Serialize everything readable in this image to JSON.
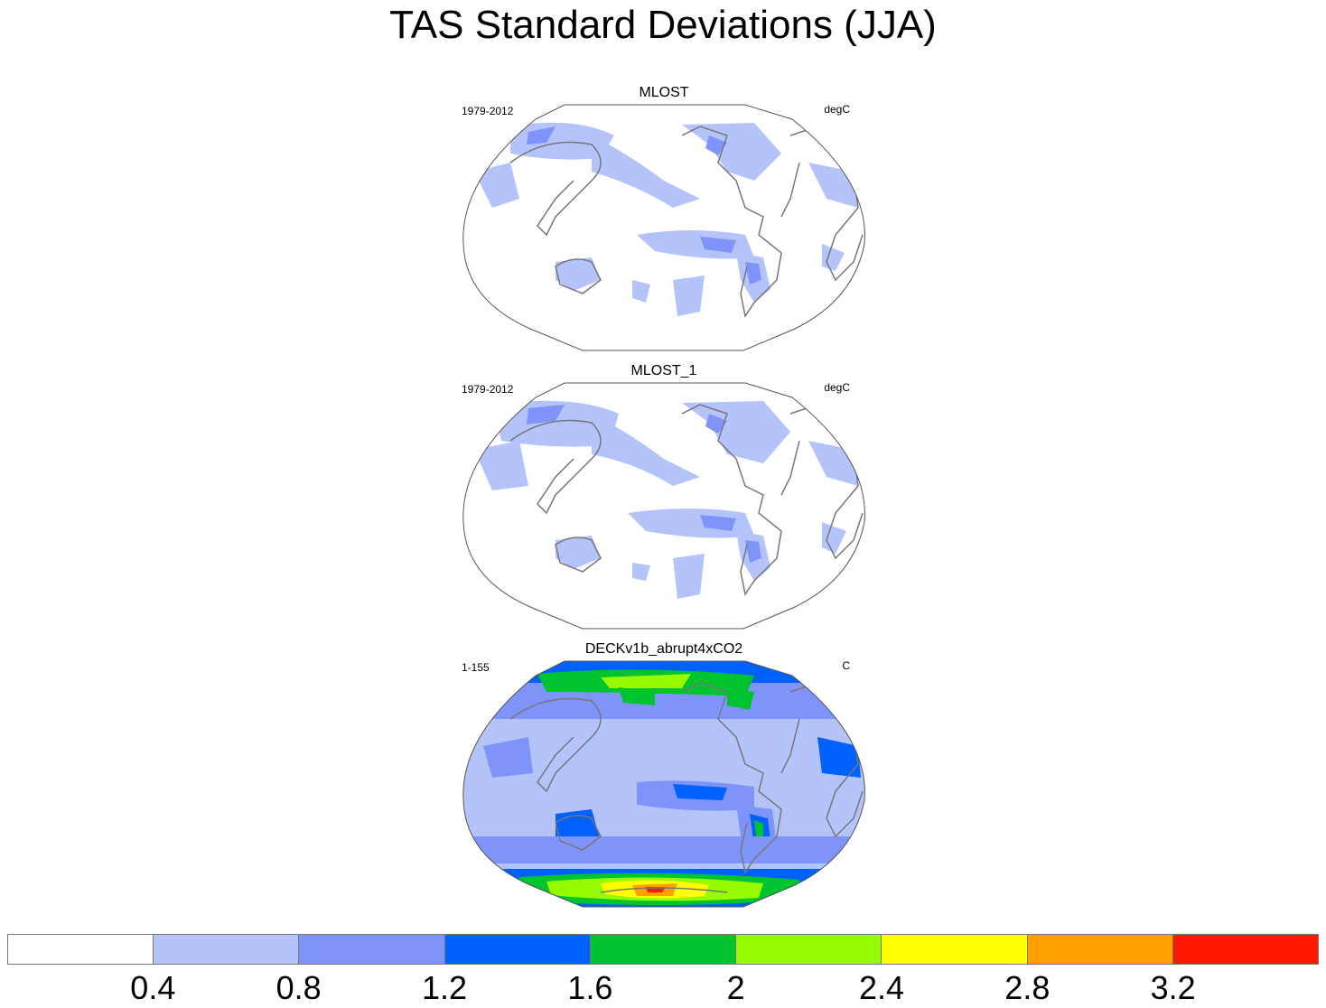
{
  "title": "TAS Standard Deviations (JJA)",
  "panels": [
    {
      "name": "MLOST",
      "period": "1979-2012",
      "units": "degC"
    },
    {
      "name": "MLOST_1",
      "period": "1979-2012",
      "units": "degC"
    },
    {
      "name": "DECKv1b_abrupt4xCO2",
      "period": "1-155",
      "units": "C"
    }
  ],
  "colorbar": {
    "colors": [
      "#ffffff",
      "#b4c3fa",
      "#7f94fa",
      "#0061ff",
      "#00c42f",
      "#97fb00",
      "#ffff00",
      "#ffa000",
      "#ff1800"
    ],
    "labels": [
      "0.4",
      "0.8",
      "1.2",
      "1.6",
      "2",
      "2.4",
      "2.8",
      "3.2"
    ]
  }
}
